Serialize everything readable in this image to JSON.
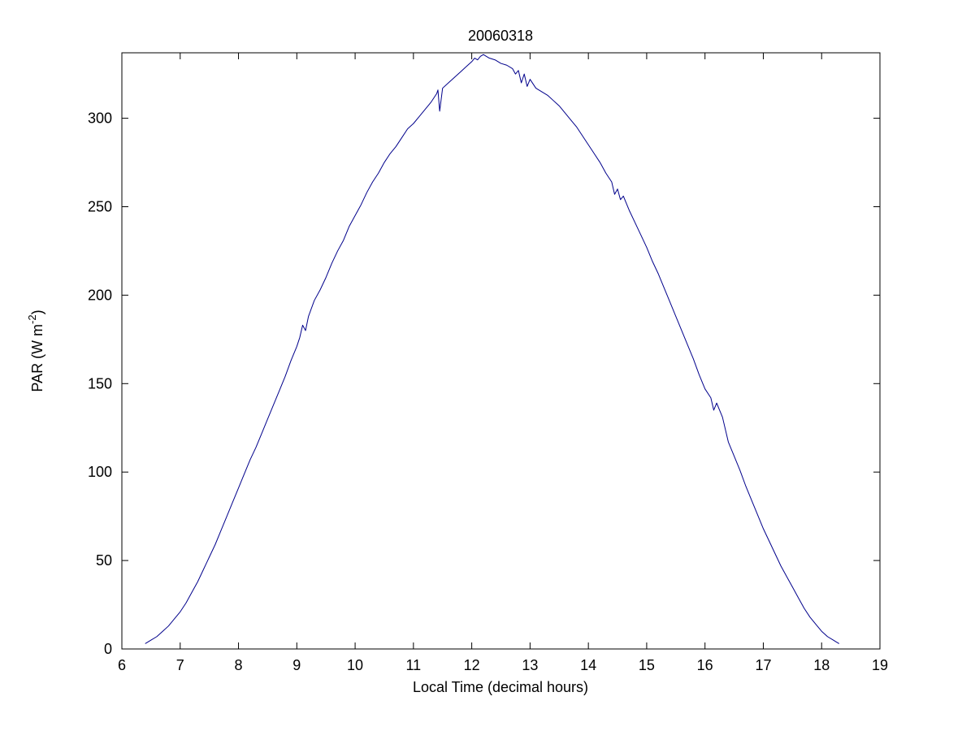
{
  "figure": {
    "background": "#ffffff"
  },
  "chart_data": {
    "type": "line",
    "title": "20060318",
    "xlabel": "Local Time (decimal hours)",
    "ylabel": "PAR (W m^-2)",
    "ylabel_parts": {
      "pre": "PAR (W m",
      "sup": "-2",
      "post": ")"
    },
    "xlim": [
      6,
      19
    ],
    "ylim": [
      0,
      337
    ],
    "xticks": [
      6,
      7,
      8,
      9,
      10,
      11,
      12,
      13,
      14,
      15,
      16,
      17,
      18,
      19
    ],
    "yticks": [
      0,
      50,
      100,
      150,
      200,
      250,
      300
    ],
    "grid": false,
    "legend_position": "none",
    "line_color": "#00008B",
    "axis_color": "#000000",
    "series": [
      {
        "name": "PAR",
        "points": [
          [
            6.4,
            3
          ],
          [
            6.5,
            5
          ],
          [
            6.6,
            7
          ],
          [
            6.7,
            10
          ],
          [
            6.8,
            13
          ],
          [
            6.9,
            17
          ],
          [
            7.0,
            21
          ],
          [
            7.1,
            26
          ],
          [
            7.2,
            32
          ],
          [
            7.3,
            38
          ],
          [
            7.4,
            45
          ],
          [
            7.5,
            52
          ],
          [
            7.6,
            59
          ],
          [
            7.7,
            67
          ],
          [
            7.8,
            75
          ],
          [
            7.9,
            83
          ],
          [
            8.0,
            91
          ],
          [
            8.1,
            99
          ],
          [
            8.2,
            107
          ],
          [
            8.3,
            114
          ],
          [
            8.4,
            122
          ],
          [
            8.5,
            130
          ],
          [
            8.6,
            138
          ],
          [
            8.7,
            146
          ],
          [
            8.8,
            154
          ],
          [
            8.9,
            163
          ],
          [
            9.0,
            171
          ],
          [
            9.05,
            176
          ],
          [
            9.1,
            183
          ],
          [
            9.15,
            180
          ],
          [
            9.2,
            188
          ],
          [
            9.3,
            197
          ],
          [
            9.4,
            203
          ],
          [
            9.5,
            210
          ],
          [
            9.6,
            218
          ],
          [
            9.7,
            225
          ],
          [
            9.8,
            231
          ],
          [
            9.9,
            239
          ],
          [
            10.0,
            245
          ],
          [
            10.1,
            251
          ],
          [
            10.2,
            258
          ],
          [
            10.3,
            264
          ],
          [
            10.4,
            269
          ],
          [
            10.5,
            275
          ],
          [
            10.6,
            280
          ],
          [
            10.7,
            284
          ],
          [
            10.8,
            289
          ],
          [
            10.9,
            294
          ],
          [
            11.0,
            297
          ],
          [
            11.1,
            301
          ],
          [
            11.2,
            305
          ],
          [
            11.3,
            309
          ],
          [
            11.4,
            314
          ],
          [
            11.42,
            316
          ],
          [
            11.45,
            304
          ],
          [
            11.5,
            317
          ],
          [
            11.6,
            320
          ],
          [
            11.7,
            323
          ],
          [
            11.8,
            326
          ],
          [
            11.9,
            329
          ],
          [
            12.0,
            332
          ],
          [
            12.05,
            334
          ],
          [
            12.1,
            333
          ],
          [
            12.15,
            335
          ],
          [
            12.2,
            336
          ],
          [
            12.3,
            334
          ],
          [
            12.4,
            333
          ],
          [
            12.5,
            331
          ],
          [
            12.6,
            330
          ],
          [
            12.7,
            328
          ],
          [
            12.75,
            325
          ],
          [
            12.8,
            327
          ],
          [
            12.85,
            320
          ],
          [
            12.9,
            325
          ],
          [
            12.95,
            318
          ],
          [
            13.0,
            322
          ],
          [
            13.1,
            317
          ],
          [
            13.2,
            315
          ],
          [
            13.3,
            313
          ],
          [
            13.4,
            310
          ],
          [
            13.5,
            307
          ],
          [
            13.6,
            303
          ],
          [
            13.7,
            299
          ],
          [
            13.8,
            295
          ],
          [
            13.9,
            290
          ],
          [
            14.0,
            285
          ],
          [
            14.1,
            280
          ],
          [
            14.2,
            275
          ],
          [
            14.3,
            269
          ],
          [
            14.4,
            264
          ],
          [
            14.45,
            257
          ],
          [
            14.5,
            260
          ],
          [
            14.55,
            254
          ],
          [
            14.6,
            256
          ],
          [
            14.7,
            248
          ],
          [
            14.8,
            241
          ],
          [
            14.9,
            234
          ],
          [
            15.0,
            227
          ],
          [
            15.1,
            219
          ],
          [
            15.2,
            212
          ],
          [
            15.3,
            204
          ],
          [
            15.4,
            196
          ],
          [
            15.5,
            188
          ],
          [
            15.6,
            180
          ],
          [
            15.7,
            172
          ],
          [
            15.8,
            164
          ],
          [
            15.9,
            155
          ],
          [
            16.0,
            147
          ],
          [
            16.1,
            142
          ],
          [
            16.15,
            135
          ],
          [
            16.2,
            139
          ],
          [
            16.3,
            131
          ],
          [
            16.4,
            117
          ],
          [
            16.5,
            109
          ],
          [
            16.6,
            101
          ],
          [
            16.7,
            92
          ],
          [
            16.8,
            84
          ],
          [
            16.9,
            76
          ],
          [
            17.0,
            68
          ],
          [
            17.1,
            61
          ],
          [
            17.2,
            54
          ],
          [
            17.3,
            47
          ],
          [
            17.4,
            41
          ],
          [
            17.5,
            35
          ],
          [
            17.6,
            29
          ],
          [
            17.7,
            23
          ],
          [
            17.8,
            18
          ],
          [
            17.9,
            14
          ],
          [
            18.0,
            10
          ],
          [
            18.1,
            7
          ],
          [
            18.2,
            5
          ],
          [
            18.25,
            4
          ],
          [
            18.3,
            3
          ]
        ]
      }
    ]
  }
}
